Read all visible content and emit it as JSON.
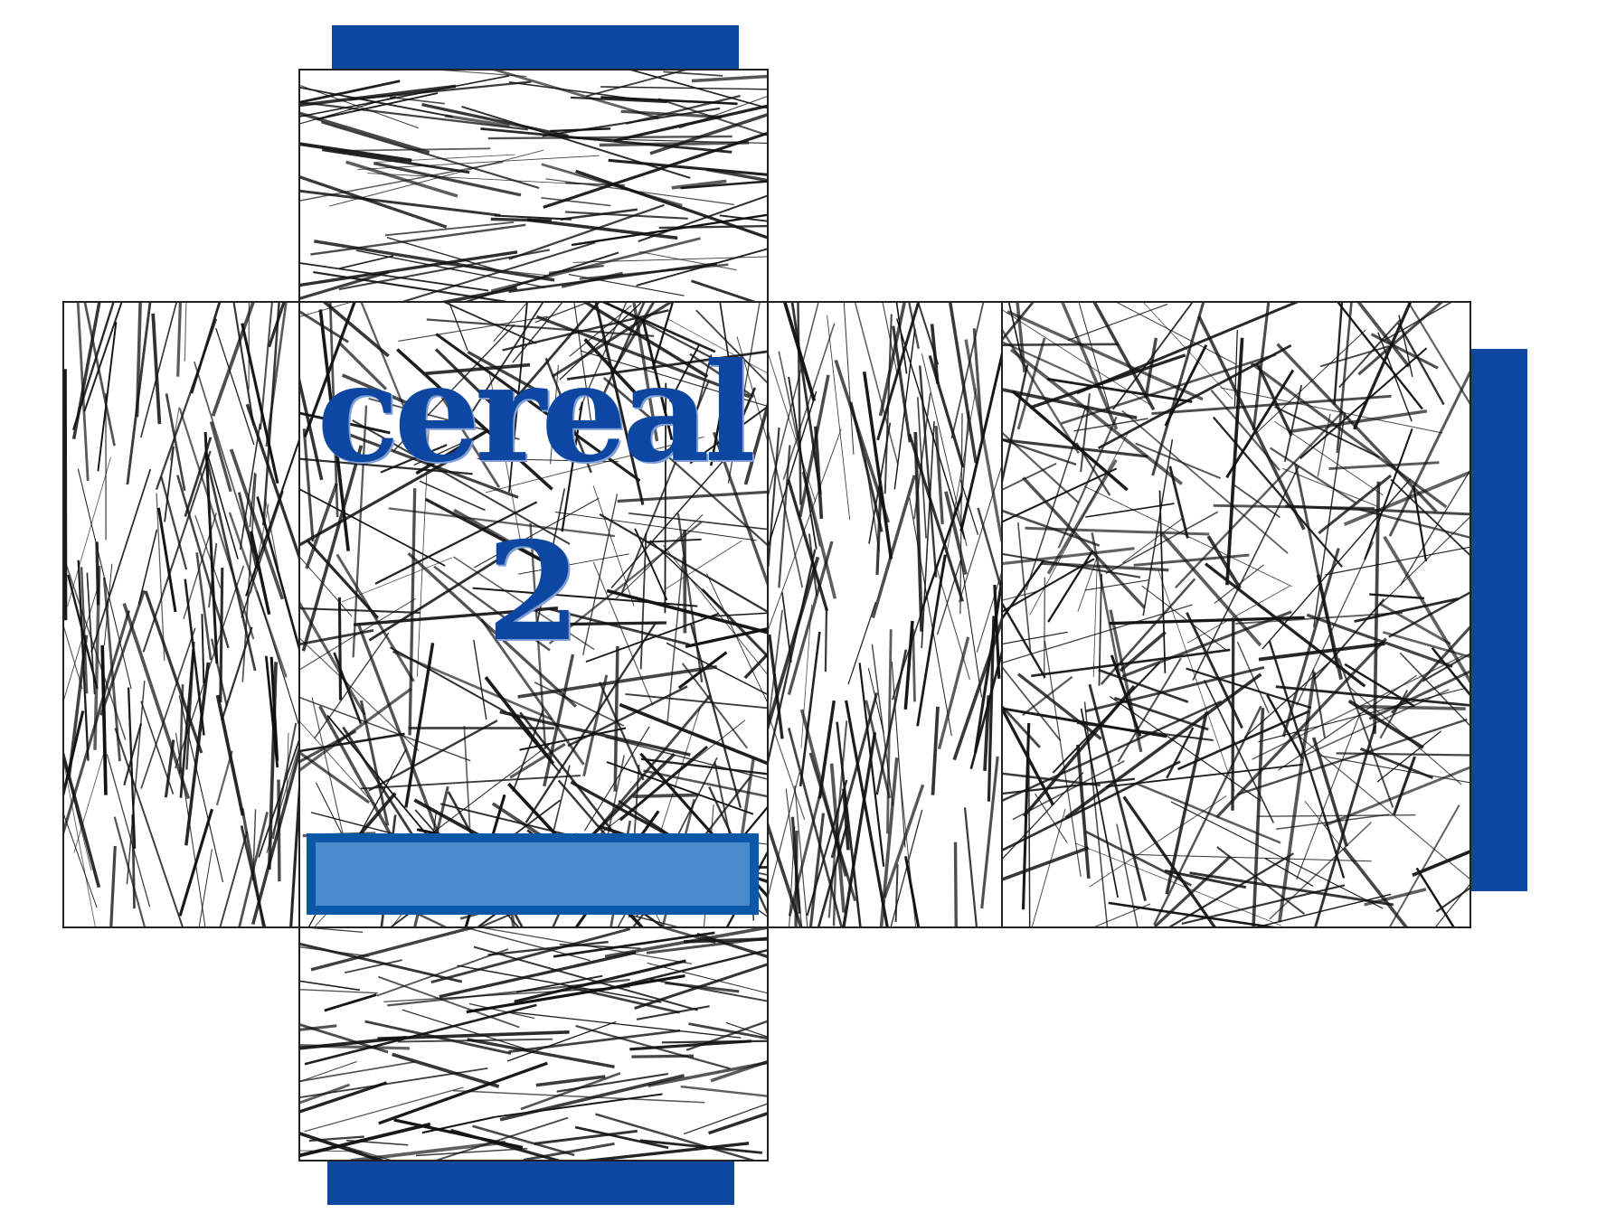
{
  "title": {
    "line1": "cereal",
    "line2": "2"
  },
  "colors": {
    "accent_dark": "#0d47a1",
    "accent_label_fill": "#4a89cc",
    "accent_label_border": "#0b57a8",
    "line_color": "#111111",
    "panel_border": "#222222",
    "background": "#ffffff"
  },
  "panels": [
    {
      "id": "top",
      "texture": "horizontal"
    },
    {
      "id": "left",
      "texture": "vertical"
    },
    {
      "id": "front",
      "texture": "random"
    },
    {
      "id": "right-side",
      "texture": "vertical"
    },
    {
      "id": "back",
      "texture": "random"
    },
    {
      "id": "bottom",
      "texture": "horizontal"
    }
  ],
  "flaps": [
    {
      "id": "top-flap"
    },
    {
      "id": "bottom-flap"
    },
    {
      "id": "side-glue-flap"
    }
  ]
}
